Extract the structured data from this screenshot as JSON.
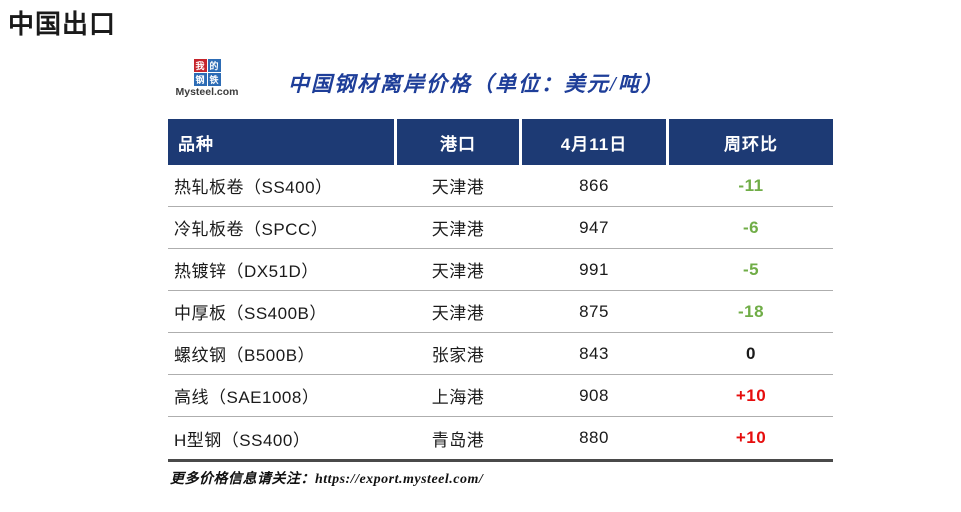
{
  "page": {
    "title": "中国出口"
  },
  "brand": {
    "logo_chars": [
      "我",
      "的",
      "钢",
      "铁"
    ],
    "logo_text": "Mysteel.com"
  },
  "table": {
    "title": "中国钢材离岸价格（单位：美元/吨）",
    "headers": [
      "品种",
      "港口",
      "4月11日",
      "周环比"
    ],
    "rows": [
      {
        "product": "热轧板卷（SS400）",
        "port": "天津港",
        "price": "866",
        "change": "-11",
        "trend": "down"
      },
      {
        "product": "冷轧板卷（SPCC）",
        "port": "天津港",
        "price": "947",
        "change": "-6",
        "trend": "down"
      },
      {
        "product": "热镀锌（DX51D）",
        "port": "天津港",
        "price": "991",
        "change": "-5",
        "trend": "down"
      },
      {
        "product": "中厚板（SS400B）",
        "port": "天津港",
        "price": "875",
        "change": "-18",
        "trend": "down"
      },
      {
        "product": "螺纹钢（B500B）",
        "port": "张家港",
        "price": "843",
        "change": "0",
        "trend": "flat"
      },
      {
        "product": "高线（SAE1008）",
        "port": "上海港",
        "price": "908",
        "change": "+10",
        "trend": "up"
      },
      {
        "product": "H型钢（SS400）",
        "port": "青岛港",
        "price": "880",
        "change": "+10",
        "trend": "up"
      }
    ]
  },
  "footer": {
    "prefix": "更多价格信息请关注：",
    "url": "https://export.mysteel.com/"
  },
  "colors": {
    "header_bg": "#1d3a74",
    "title_blue": "#1e3e99",
    "down_green": "#70ad47",
    "up_red": "#e60d0d",
    "flat_black": "#1a1a1a",
    "logo_red": "#c5252c",
    "logo_blue": "#2d6cb5"
  },
  "chart_data": {
    "type": "table",
    "title": "中国钢材离岸价格（单位：美元/吨）",
    "columns": [
      "品种",
      "港口",
      "4月11日",
      "周环比"
    ],
    "rows": [
      [
        "热轧板卷（SS400）",
        "天津港",
        866,
        -11
      ],
      [
        "冷轧板卷（SPCC）",
        "天津港",
        947,
        -6
      ],
      [
        "热镀锌（DX51D）",
        "天津港",
        991,
        -5
      ],
      [
        "中厚板（SS400B）",
        "天津港",
        875,
        -18
      ],
      [
        "螺纹钢（B500B）",
        "张家港",
        843,
        0
      ],
      [
        "高线（SAE1008）",
        "上海港",
        908,
        10
      ],
      [
        "H型钢（SS400）",
        "青岛港",
        880,
        10
      ]
    ],
    "notes": "周环比 colored green for decline, black for flat, red for increase"
  }
}
